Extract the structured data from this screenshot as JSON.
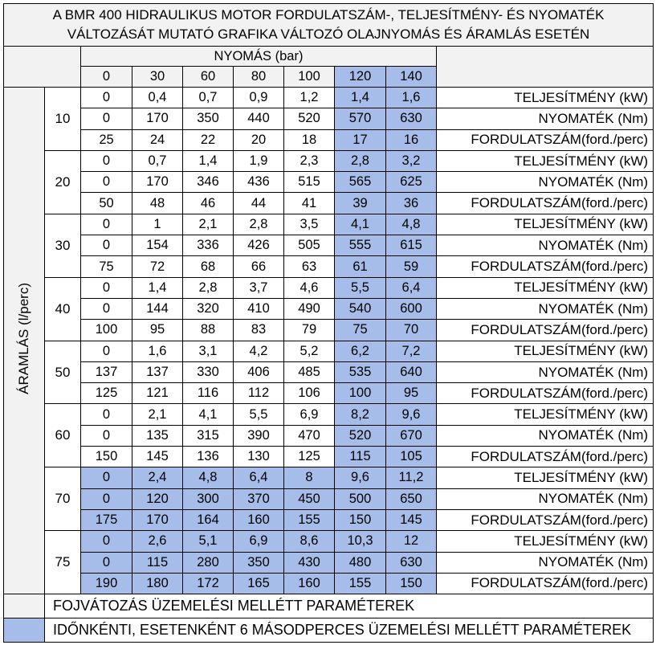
{
  "title": [
    "A BMR 400 HIDRAULIKUS MOTOR FORDULATSZÁM-, TELJESÍTMÉNY- ÉS NYOMATÉK",
    "VÁLTOZÁSÁT MUTATÓ GRAFIKA VÁLTOZÓ OLAJNYOMÁS ÉS ÁRAMLÁS ESETÉN"
  ],
  "pressure_label": "NYOMÁS (bar)",
  "pressures": [
    "0",
    "30",
    "60",
    "80",
    "100",
    "120",
    "140"
  ],
  "flow_label": "ÁRAMLÁS (l/perc)",
  "row_labels": [
    "TELJESÍTMÉNY (kW)",
    "NYOMATÉK (Nm)",
    "FORDULATSZÁM(ford./perc)"
  ],
  "groups": [
    {
      "flow": "10",
      "rows": [
        [
          "0",
          "0,4",
          "0,7",
          "0,9",
          "1,2",
          "1,4",
          "1,6"
        ],
        [
          "0",
          "170",
          "350",
          "440",
          "520",
          "570",
          "630"
        ],
        [
          "25",
          "24",
          "22",
          "20",
          "18",
          "17",
          "16"
        ]
      ]
    },
    {
      "flow": "20",
      "rows": [
        [
          "0",
          "0,7",
          "1,4",
          "1,9",
          "2,3",
          "2,8",
          "3,2"
        ],
        [
          "0",
          "170",
          "346",
          "436",
          "515",
          "565",
          "625"
        ],
        [
          "50",
          "48",
          "46",
          "44",
          "41",
          "39",
          "36"
        ]
      ]
    },
    {
      "flow": "30",
      "rows": [
        [
          "0",
          "1",
          "2,1",
          "2,8",
          "3,5",
          "4,1",
          "4,8"
        ],
        [
          "0",
          "154",
          "336",
          "426",
          "505",
          "555",
          "615"
        ],
        [
          "75",
          "72",
          "68",
          "66",
          "63",
          "61",
          "59"
        ]
      ]
    },
    {
      "flow": "40",
      "rows": [
        [
          "0",
          "1,4",
          "2,8",
          "3,7",
          "4,6",
          "5,5",
          "6,4"
        ],
        [
          "0",
          "144",
          "320",
          "410",
          "490",
          "540",
          "600"
        ],
        [
          "100",
          "95",
          "88",
          "83",
          "79",
          "75",
          "70"
        ]
      ]
    },
    {
      "flow": "50",
      "rows": [
        [
          "0",
          "1,6",
          "3,1",
          "4,2",
          "5,2",
          "6,2",
          "7,2"
        ],
        [
          "137",
          "137",
          "330",
          "406",
          "485",
          "535",
          "640"
        ],
        [
          "125",
          "121",
          "116",
          "112",
          "106",
          "100",
          "95"
        ]
      ]
    },
    {
      "flow": "60",
      "rows": [
        [
          "0",
          "2,1",
          "4,1",
          "5,5",
          "6,9",
          "8,2",
          "9,6"
        ],
        [
          "0",
          "135",
          "315",
          "390",
          "470",
          "520",
          "670"
        ],
        [
          "150",
          "145",
          "136",
          "130",
          "125",
          "115",
          "105"
        ]
      ]
    },
    {
      "flow": "70",
      "rows": [
        [
          "0",
          "2,4",
          "4,8",
          "6,4",
          "8",
          "9,6",
          "11,2"
        ],
        [
          "0",
          "120",
          "300",
          "370",
          "450",
          "500",
          "650"
        ],
        [
          "175",
          "170",
          "164",
          "160",
          "155",
          "150",
          "145"
        ]
      ]
    },
    {
      "flow": "75",
      "rows": [
        [
          "0",
          "2,6",
          "5,1",
          "6,9",
          "8,6",
          "10,3",
          "12"
        ],
        [
          "0",
          "115",
          "280",
          "350",
          "430",
          "480",
          "630"
        ],
        [
          "190",
          "180",
          "172",
          "165",
          "160",
          "155",
          "150"
        ]
      ]
    }
  ],
  "legend": [
    "FOJVÁTOZÁS ÜZEMELÉSI MELLÉTT PARAMÉTEREK",
    "IDŐNKÉNTI, ESETENKÉNT 6 MÁSODPERCES ÜZEMELÉSI MELLÉTT PARAMÉTEREK"
  ]
}
